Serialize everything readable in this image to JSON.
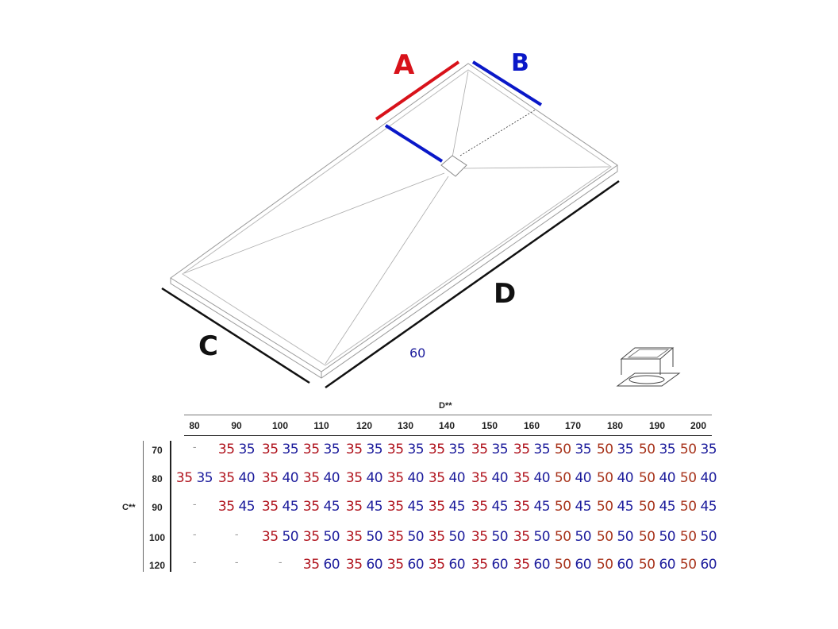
{
  "diagram": {
    "labels": {
      "a": "A",
      "b": "B",
      "c": "C",
      "d": "D",
      "note": "60"
    },
    "colors": {
      "a": "#d8121a",
      "b": "#0a18c8",
      "outline": "#888888",
      "dim": "#111111"
    }
  },
  "table": {
    "column_group": "D**",
    "row_group": "C**",
    "columns": [
      "80",
      "90",
      "100",
      "110",
      "120",
      "130",
      "140",
      "150",
      "160",
      "170",
      "180",
      "190",
      "200"
    ],
    "colors": {
      "first35": "#b0141e",
      "first50": "#a8341c",
      "second": "#1c1c9c",
      "empty": "#999999"
    },
    "rows": [
      {
        "label": "70",
        "cells": [
          "-",
          "35 35",
          "35 35",
          "35 35",
          "35 35",
          "35 35",
          "35 35",
          "35 35",
          "35 35",
          "50 35",
          "50 35",
          "50 35",
          "50 35"
        ]
      },
      {
        "label": "80",
        "cells": [
          "35 35",
          "35 40",
          "35 40",
          "35 40",
          "35 40",
          "35 40",
          "35 40",
          "35 40",
          "35 40",
          "50 40",
          "50 40",
          "50 40",
          "50 40"
        ]
      },
      {
        "label": "90",
        "cells": [
          "-",
          "35 45",
          "35 45",
          "35 45",
          "35 45",
          "35 45",
          "35 45",
          "35 45",
          "35 45",
          "50 45",
          "50 45",
          "50 45",
          "50 45"
        ]
      },
      {
        "label": "100",
        "cells": [
          "-",
          "-",
          "35 50",
          "35 50",
          "35 50",
          "35 50",
          "35 50",
          "35 50",
          "35 50",
          "50 50",
          "50 50",
          "50 50",
          "50 50"
        ]
      },
      {
        "label": "120",
        "cells": [
          "-",
          "-",
          "-",
          "35 60",
          "35 60",
          "35 60",
          "35 60",
          "35 60",
          "35 60",
          "50 60",
          "50 60",
          "50 60",
          "50 60"
        ]
      }
    ]
  }
}
